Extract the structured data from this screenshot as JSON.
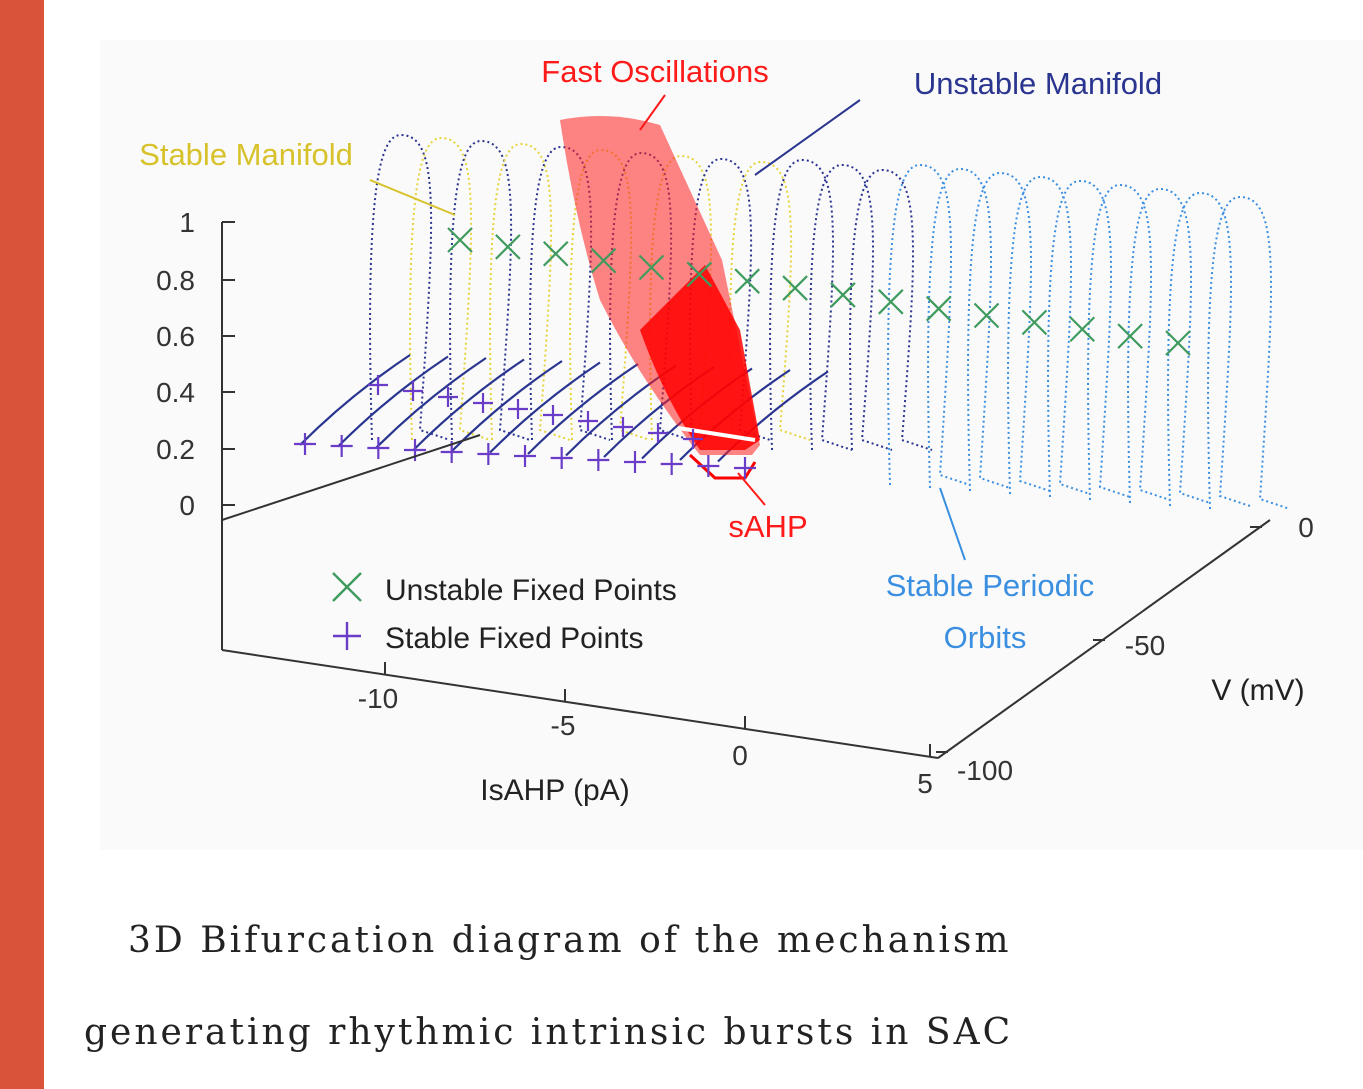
{
  "chart_data": {
    "type": "scatter",
    "projection": "3d",
    "axes": {
      "z": {
        "ticks": [
          "1",
          "0.8",
          "0.6",
          "0.4",
          "0.2",
          "0"
        ],
        "range": [
          0,
          1
        ]
      },
      "x": {
        "label": "IsAHP (pA)",
        "ticks": [
          "-10",
          "-5",
          "0",
          "5"
        ],
        "range": [
          -12,
          5
        ]
      },
      "y": {
        "label": "V (mV)",
        "ticks": [
          "0",
          "-50",
          "-100"
        ],
        "range": [
          -100,
          0
        ]
      }
    },
    "annotations": {
      "fast_oscillations": "Fast Oscillations",
      "unstable_manifold": "Unstable Manifold",
      "stable_manifold": "Stable Manifold",
      "sahp": "sAHP",
      "stable_periodic_orbits_1": "Stable Periodic",
      "stable_periodic_orbits_2": "Orbits"
    },
    "legend": {
      "position": "bottom-left",
      "entries": [
        {
          "label": "Unstable Fixed Points",
          "marker": "x",
          "color": "#3f9a5e"
        },
        {
          "label": "Stable Fixed Points",
          "marker": "+",
          "color": "#6a3dc9"
        }
      ]
    },
    "series": [
      {
        "name": "Unstable Fixed Points",
        "marker": "x",
        "color": "#3f9a5e",
        "points_isahp": [
          -11,
          -10,
          -9,
          -8,
          -7,
          -6,
          -5,
          -4,
          -3,
          -2,
          -1,
          0,
          1,
          2,
          3,
          4
        ],
        "z": 0.78
      },
      {
        "name": "Stable Fixed Points",
        "marker": "+",
        "color": "#6a3dc9",
        "points_isahp": [
          -12,
          -11,
          -10,
          -9,
          -8,
          -7,
          -6,
          -5,
          -4,
          -3,
          -2,
          -1,
          0
        ],
        "z": 0.22
      }
    ],
    "colors": {
      "stable_manifold": "#e6d33a",
      "unstable_manifold": "#2a3590",
      "fast_oscillations": "#ff1a1a",
      "stable_periodic_orbits": "#3b8fe0"
    }
  },
  "caption": {
    "line1": "3D Bifurcation diagram of the mechanism",
    "line2": "generating rhythmic intrinsic bursts in SAC"
  }
}
